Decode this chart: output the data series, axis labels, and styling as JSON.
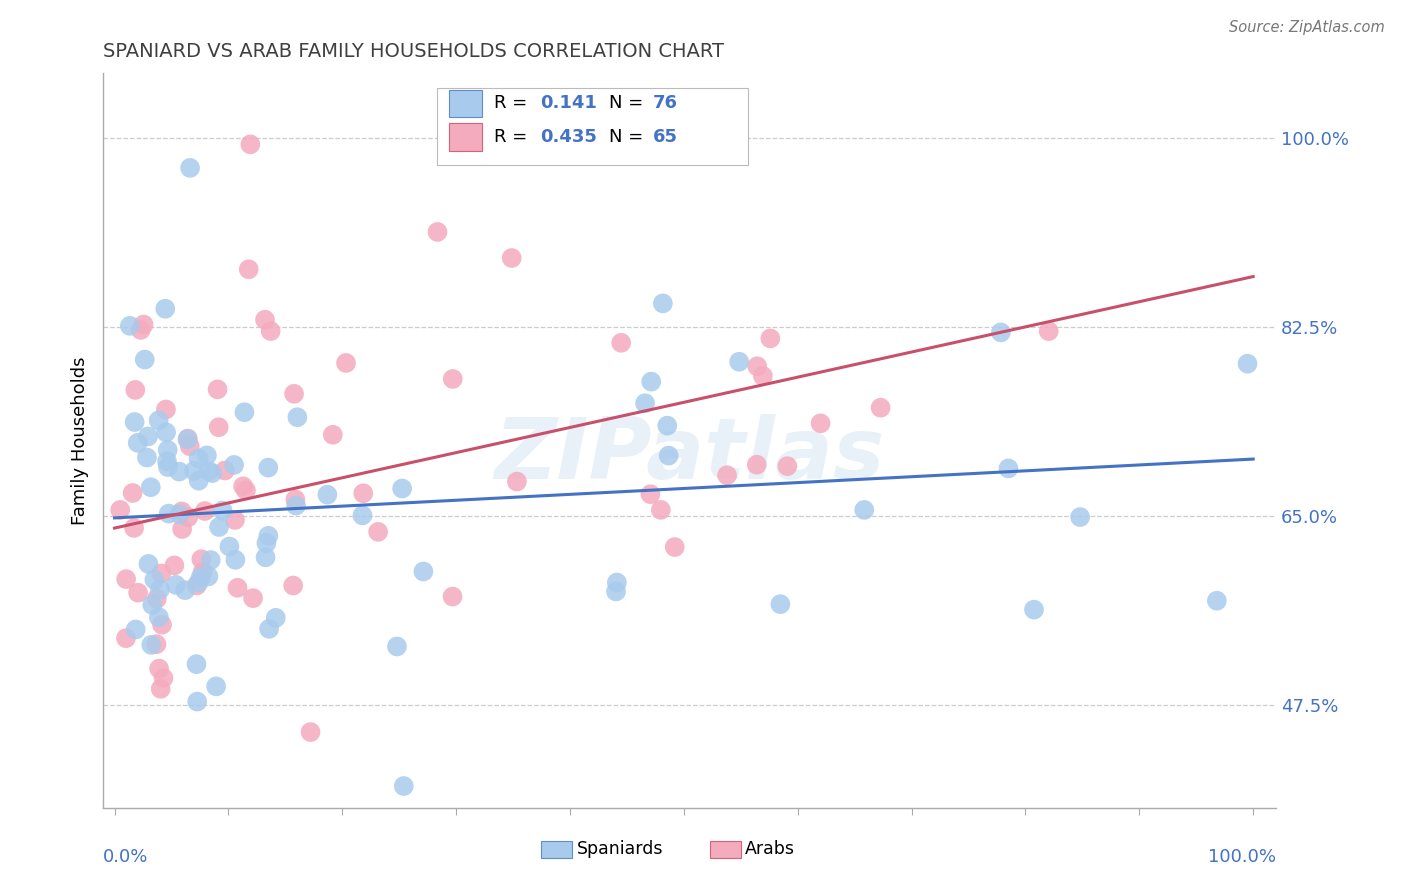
{
  "title": "SPANIARD VS ARAB FAMILY HOUSEHOLDS CORRELATION CHART",
  "source": "Source: ZipAtlas.com",
  "ylabel": "Family Households",
  "y_ticks_pct": [
    47.5,
    65.0,
    82.5,
    100.0
  ],
  "blue_color": "#A8CAEC",
  "pink_color": "#F4ABBE",
  "blue_edge_color": "#5B8FCC",
  "pink_edge_color": "#D9607A",
  "blue_line_color": "#4472C4",
  "pink_line_color": "#C8506A",
  "label_color": "#4472C4",
  "title_color": "#404040",
  "r_sp": 0.141,
  "r_ar": 0.435,
  "n_sp": 76,
  "n_ar": 65,
  "watermark": "ZIPatlas",
  "xlim": [
    -0.01,
    1.02
  ],
  "ylim": [
    0.38,
    1.06
  ]
}
